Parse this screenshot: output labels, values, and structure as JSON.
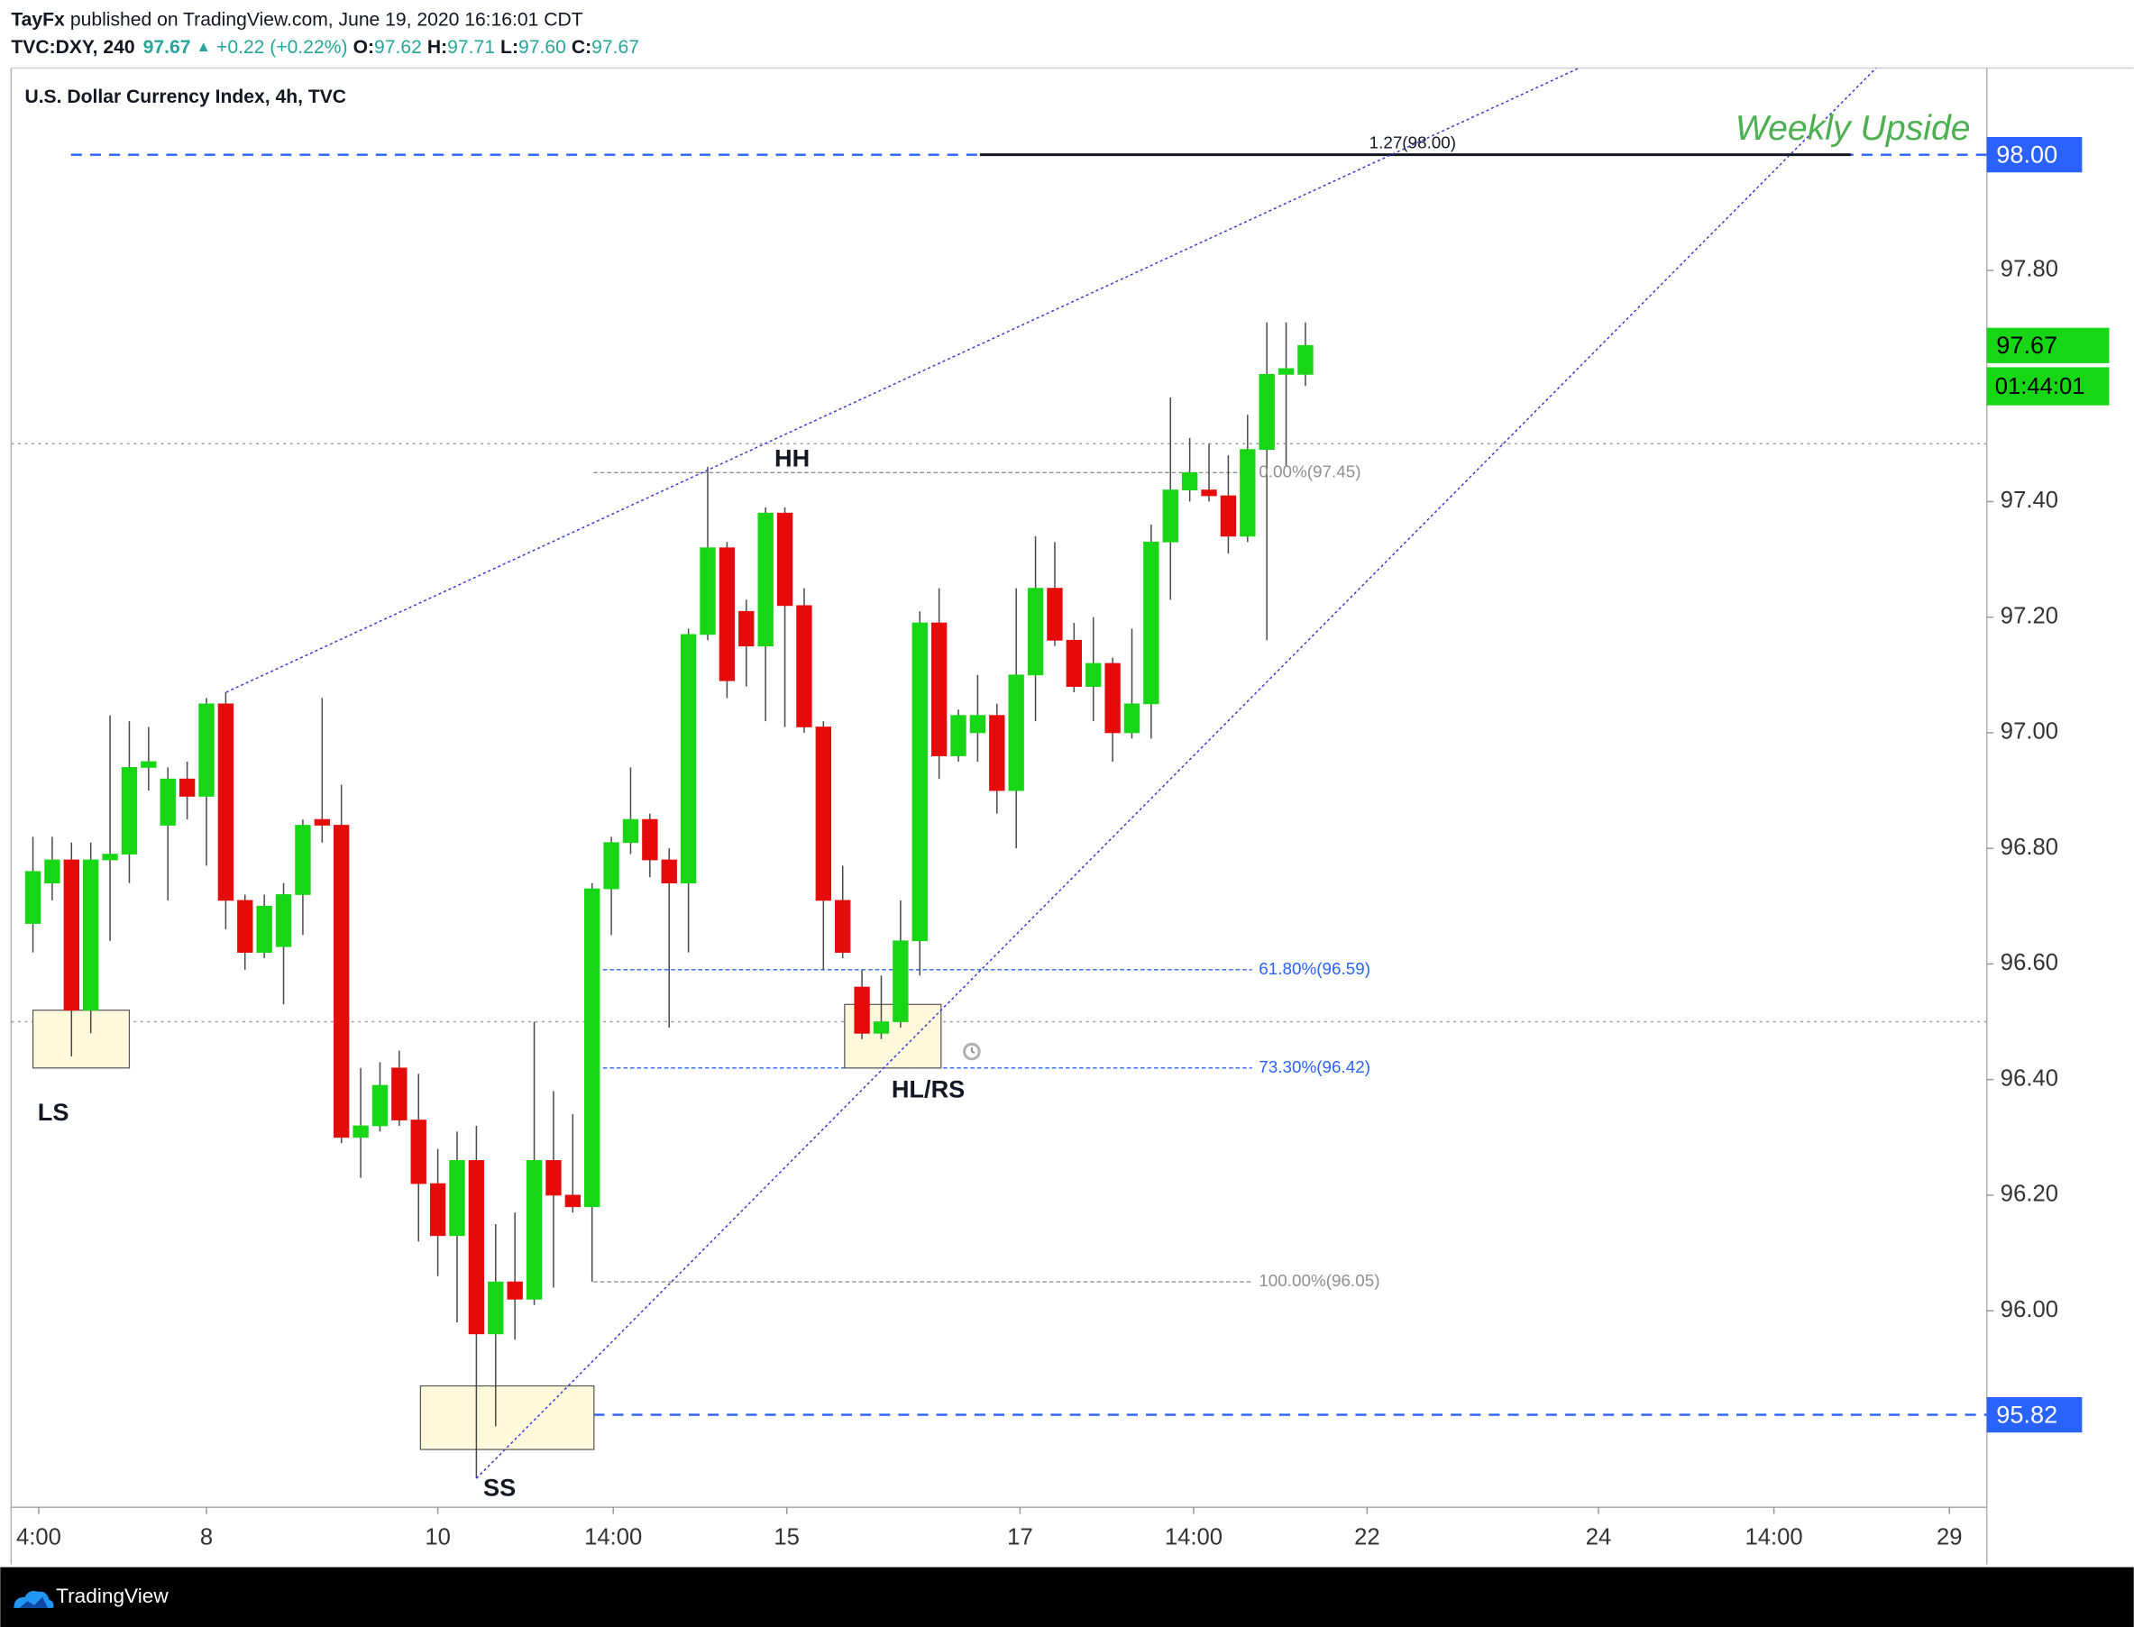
{
  "header": {
    "publisher": "TayFx",
    "published": "published on TradingView.com, June 19, 2020 16:16:01 CDT",
    "symbol": "TVC:DXY, 240",
    "last": "97.67",
    "arrow": "▲",
    "change": "+0.22 (+0.22%)",
    "ohlc": [
      {
        "label": "O:",
        "value": "97.62"
      },
      {
        "label": "H:",
        "value": "97.71"
      },
      {
        "label": "L:",
        "value": "97.60"
      },
      {
        "label": "C:",
        "value": "97.67"
      }
    ]
  },
  "footer": {
    "brand": "TradingView"
  },
  "chart_data": {
    "type": "candlestick",
    "title": "U.S. Dollar Currency Index, 4h, TVC",
    "up_color": "#16d616",
    "down_color": "#e60b0b",
    "wick_color": "#4a4a4a",
    "open": [
      96.67,
      96.74,
      96.78,
      96.52,
      96.78,
      96.79,
      96.94,
      96.84,
      96.92,
      96.89,
      97.05,
      96.71,
      96.62,
      96.63,
      96.72,
      96.85,
      96.84,
      96.3,
      96.32,
      96.42,
      96.33,
      96.22,
      96.13,
      96.26,
      95.96,
      96.05,
      96.02,
      96.26,
      96.2,
      96.18,
      96.73,
      96.81,
      96.85,
      96.78,
      96.74,
      97.17,
      97.32,
      97.21,
      97.15,
      97.38,
      97.22,
      97.01,
      96.71,
      96.56,
      96.48,
      96.5,
      96.64,
      97.19,
      96.96,
      97.0,
      97.03,
      96.9,
      97.1,
      97.25,
      97.16,
      97.08,
      97.12,
      97.0,
      97.05,
      97.33,
      97.42,
      97.42,
      97.41,
      97.34,
      97.49,
      97.62,
      97.62
    ],
    "high": [
      96.82,
      96.82,
      96.81,
      96.81,
      97.03,
      97.02,
      97.01,
      96.94,
      96.95,
      97.06,
      97.07,
      96.72,
      96.72,
      96.74,
      96.85,
      97.06,
      96.91,
      96.42,
      96.43,
      96.45,
      96.41,
      96.28,
      96.31,
      96.32,
      96.15,
      96.17,
      96.5,
      96.38,
      96.34,
      96.74,
      96.82,
      96.94,
      96.86,
      96.8,
      97.18,
      97.46,
      97.33,
      97.23,
      97.39,
      97.39,
      97.25,
      97.02,
      96.77,
      96.59,
      96.58,
      96.71,
      97.21,
      97.25,
      97.04,
      97.1,
      97.05,
      97.25,
      97.34,
      97.33,
      97.19,
      97.2,
      97.13,
      97.18,
      97.36,
      97.58,
      97.51,
      97.5,
      97.48,
      97.55,
      97.71,
      97.71,
      97.71
    ],
    "low": [
      96.62,
      96.71,
      96.44,
      96.48,
      96.64,
      96.74,
      96.9,
      96.71,
      96.85,
      96.77,
      96.66,
      96.59,
      96.61,
      96.53,
      96.65,
      96.81,
      96.29,
      96.23,
      96.31,
      96.32,
      96.12,
      96.06,
      95.98,
      95.71,
      95.8,
      95.95,
      96.01,
      96.04,
      96.17,
      96.05,
      96.65,
      96.79,
      96.75,
      96.49,
      96.62,
      97.16,
      97.06,
      97.08,
      97.02,
      97.01,
      97.0,
      96.59,
      96.61,
      96.47,
      96.47,
      96.49,
      96.58,
      96.92,
      96.95,
      96.95,
      96.86,
      96.8,
      97.02,
      97.15,
      97.07,
      97.02,
      96.95,
      96.99,
      96.99,
      97.23,
      97.4,
      97.4,
      97.31,
      97.33,
      97.16,
      97.46,
      97.6
    ],
    "close": [
      96.76,
      96.78,
      96.52,
      96.78,
      96.79,
      96.94,
      96.95,
      96.92,
      96.89,
      97.05,
      96.71,
      96.62,
      96.7,
      96.72,
      96.84,
      96.84,
      96.3,
      96.32,
      96.39,
      96.33,
      96.22,
      96.13,
      96.26,
      95.96,
      96.05,
      96.02,
      96.26,
      96.2,
      96.18,
      96.73,
      96.81,
      96.85,
      96.78,
      96.74,
      97.17,
      97.32,
      97.09,
      97.15,
      97.38,
      97.22,
      97.01,
      96.71,
      96.62,
      96.48,
      96.5,
      96.64,
      97.19,
      96.96,
      97.03,
      97.03,
      96.9,
      97.1,
      97.25,
      97.16,
      97.08,
      97.12,
      97.0,
      97.05,
      97.33,
      97.42,
      97.45,
      97.41,
      97.34,
      97.49,
      97.62,
      97.63,
      97.67
    ],
    "xlim": [
      -1.13,
      101.34
    ],
    "xticks": [
      {
        "value": 0.3,
        "label": "4:00"
      },
      {
        "value": 9,
        "label": "8"
      },
      {
        "value": 21,
        "label": "10"
      },
      {
        "value": 30.1,
        "label": "14:00"
      },
      {
        "value": 39.1,
        "label": "15"
      },
      {
        "value": 51.2,
        "label": "17"
      },
      {
        "value": 60.2,
        "label": "14:00"
      },
      {
        "value": 69.2,
        "label": "22"
      },
      {
        "value": 81.2,
        "label": "24"
      },
      {
        "value": 90.3,
        "label": "14:00"
      },
      {
        "value": 99.4,
        "label": "29"
      }
    ],
    "ylim": [
      95.66,
      98.15
    ],
    "yticks": [
      {
        "value": 96.0,
        "label": "96.00"
      },
      {
        "value": 96.2,
        "label": "96.20"
      },
      {
        "value": 96.4,
        "label": "96.40"
      },
      {
        "value": 96.6,
        "label": "96.60"
      },
      {
        "value": 96.8,
        "label": "96.80"
      },
      {
        "value": 97.0,
        "label": "97.00"
      },
      {
        "value": 97.2,
        "label": "97.20"
      },
      {
        "value": 97.4,
        "label": "97.40"
      },
      {
        "value": 97.8,
        "label": "97.80"
      }
    ],
    "horizontal_lines": [
      {
        "value": 98.0,
        "color": "#2962ff",
        "dash": "dashed"
      },
      {
        "value": 95.82,
        "color": "#2962ff",
        "dash": "dashed"
      },
      {
        "value": 97.5,
        "color": "#a0a0a0",
        "dash": "dotted"
      },
      {
        "value": 96.5,
        "color": "#a0a0a0",
        "dash": "dotted"
      }
    ],
    "price_labels": [
      {
        "value": 98.0,
        "label": "98.00",
        "color": "#2962ff"
      },
      {
        "value": 95.82,
        "label": "95.82",
        "color": "#2962ff"
      },
      {
        "value": 97.67,
        "label": "97.67",
        "color": "#16d616"
      }
    ],
    "countdown": "01:44:01",
    "fib_levels": [
      {
        "value": 97.45,
        "label": "0.00%(97.45)",
        "color": "#909090"
      },
      {
        "value": 96.59,
        "label": "61.80%(96.59)",
        "color": "#2962ff"
      },
      {
        "value": 96.42,
        "label": "73.30%(96.42)",
        "color": "#2962ff"
      },
      {
        "value": 96.05,
        "label": "100.00%(96.05)",
        "color": "#909090"
      }
    ],
    "extension": {
      "value": 98.0,
      "label": "1.27(98.00)"
    },
    "trendlines": [
      {
        "x": [
          10.02,
          80.2
        ],
        "y": [
          97.07,
          98.15
        ]
      },
      {
        "x": [
          23.0,
          95.6
        ],
        "y": [
          95.71,
          98.15
        ]
      }
    ],
    "zones": [
      {
        "x": [
          0,
          5
        ],
        "y": [
          96.42,
          96.52
        ]
      },
      {
        "x": [
          42.1,
          47.1
        ],
        "y": [
          96.42,
          96.53
        ]
      },
      {
        "x": [
          20.1,
          29.1
        ],
        "y": [
          95.76,
          95.87
        ]
      }
    ],
    "annotations": [
      "LS",
      "HH",
      "HL/RS",
      "SS",
      "Weekly Upside"
    ]
  }
}
